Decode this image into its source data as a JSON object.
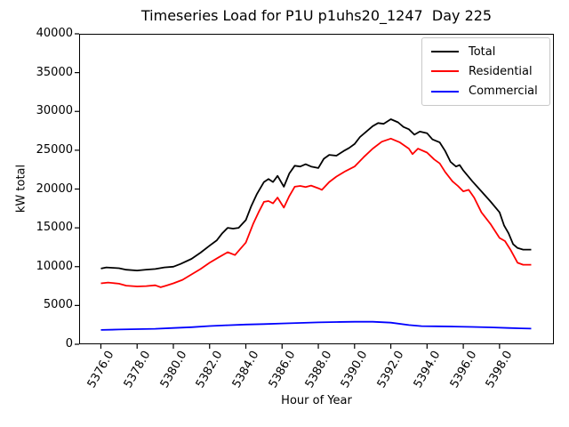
{
  "chart_data": {
    "type": "line",
    "title": "Timeseries Load for P1U p1uhs20_1247  Day 225",
    "xlabel": "Hour of Year",
    "ylabel": "kW total",
    "xlim": [
      5374.8,
      5401.0
    ],
    "ylim": [
      0,
      40000
    ],
    "grid": false,
    "legend_position": "upper right",
    "x_ticks": [
      5376,
      5378,
      5380,
      5382,
      5384,
      5386,
      5388,
      5390,
      5392,
      5394,
      5396,
      5398
    ],
    "x_tick_labels": [
      "5376.0",
      "5378.0",
      "5380.0",
      "5382.0",
      "5384.0",
      "5386.0",
      "5388.0",
      "5390.0",
      "5392.0",
      "5394.0",
      "5396.0",
      "5398.0"
    ],
    "y_ticks": [
      0,
      5000,
      10000,
      15000,
      20000,
      25000,
      30000,
      35000,
      40000
    ],
    "y_tick_labels": [
      "0",
      "5000",
      "10000",
      "15000",
      "20000",
      "25000",
      "30000",
      "35000",
      "40000"
    ],
    "series": [
      {
        "name": "Total",
        "color": "#000000",
        "points": [
          [
            5376.0,
            9750
          ],
          [
            5376.3,
            9900
          ],
          [
            5376.7,
            9850
          ],
          [
            5377.0,
            9800
          ],
          [
            5377.4,
            9600
          ],
          [
            5378.0,
            9500
          ],
          [
            5378.5,
            9620
          ],
          [
            5379.0,
            9700
          ],
          [
            5379.5,
            9900
          ],
          [
            5380.0,
            10000
          ],
          [
            5380.4,
            10350
          ],
          [
            5381.0,
            11000
          ],
          [
            5381.5,
            11800
          ],
          [
            5382.0,
            12700
          ],
          [
            5382.4,
            13400
          ],
          [
            5382.7,
            14300
          ],
          [
            5383.0,
            15000
          ],
          [
            5383.3,
            14900
          ],
          [
            5383.6,
            15000
          ],
          [
            5384.0,
            16000
          ],
          [
            5384.3,
            17800
          ],
          [
            5384.6,
            19300
          ],
          [
            5385.0,
            20900
          ],
          [
            5385.25,
            21300
          ],
          [
            5385.5,
            20900
          ],
          [
            5385.75,
            21700
          ],
          [
            5386.1,
            20300
          ],
          [
            5386.4,
            22000
          ],
          [
            5386.7,
            23000
          ],
          [
            5387.0,
            22900
          ],
          [
            5387.3,
            23200
          ],
          [
            5387.6,
            22900
          ],
          [
            5388.0,
            22700
          ],
          [
            5388.3,
            23900
          ],
          [
            5388.6,
            24400
          ],
          [
            5389.0,
            24300
          ],
          [
            5389.4,
            24900
          ],
          [
            5389.7,
            25300
          ],
          [
            5390.0,
            25800
          ],
          [
            5390.3,
            26700
          ],
          [
            5390.6,
            27300
          ],
          [
            5391.0,
            28100
          ],
          [
            5391.3,
            28500
          ],
          [
            5391.6,
            28400
          ],
          [
            5392.0,
            29000
          ],
          [
            5392.4,
            28600
          ],
          [
            5392.7,
            28000
          ],
          [
            5393.0,
            27700
          ],
          [
            5393.3,
            27000
          ],
          [
            5393.6,
            27400
          ],
          [
            5394.0,
            27200
          ],
          [
            5394.3,
            26400
          ],
          [
            5394.7,
            26000
          ],
          [
            5395.0,
            24900
          ],
          [
            5395.3,
            23500
          ],
          [
            5395.6,
            22900
          ],
          [
            5395.8,
            23100
          ],
          [
            5396.0,
            22400
          ],
          [
            5396.5,
            21000
          ],
          [
            5397.0,
            19700
          ],
          [
            5397.5,
            18400
          ],
          [
            5398.0,
            17000
          ],
          [
            5398.25,
            15300
          ],
          [
            5398.5,
            14300
          ],
          [
            5398.75,
            12900
          ],
          [
            5399.0,
            12400
          ],
          [
            5399.3,
            12200
          ],
          [
            5399.75,
            12200
          ]
        ]
      },
      {
        "name": "Residential",
        "color": "#ff0000",
        "points": [
          [
            5376.0,
            7850
          ],
          [
            5376.4,
            7950
          ],
          [
            5377.0,
            7800
          ],
          [
            5377.4,
            7550
          ],
          [
            5378.0,
            7450
          ],
          [
            5378.5,
            7500
          ],
          [
            5379.0,
            7600
          ],
          [
            5379.3,
            7350
          ],
          [
            5379.6,
            7550
          ],
          [
            5380.0,
            7850
          ],
          [
            5380.5,
            8300
          ],
          [
            5381.0,
            9000
          ],
          [
            5381.5,
            9700
          ],
          [
            5382.0,
            10500
          ],
          [
            5382.5,
            11200
          ],
          [
            5383.0,
            11860
          ],
          [
            5383.4,
            11500
          ],
          [
            5384.0,
            13100
          ],
          [
            5384.4,
            15500
          ],
          [
            5384.7,
            17000
          ],
          [
            5385.0,
            18350
          ],
          [
            5385.25,
            18450
          ],
          [
            5385.5,
            18150
          ],
          [
            5385.75,
            18900
          ],
          [
            5386.1,
            17600
          ],
          [
            5386.4,
            19100
          ],
          [
            5386.7,
            20300
          ],
          [
            5387.0,
            20400
          ],
          [
            5387.3,
            20250
          ],
          [
            5387.6,
            20450
          ],
          [
            5388.0,
            20100
          ],
          [
            5388.2,
            19900
          ],
          [
            5388.6,
            20900
          ],
          [
            5389.0,
            21600
          ],
          [
            5389.5,
            22300
          ],
          [
            5390.0,
            22900
          ],
          [
            5390.5,
            24100
          ],
          [
            5391.0,
            25200
          ],
          [
            5391.5,
            26100
          ],
          [
            5392.0,
            26500
          ],
          [
            5392.5,
            26000
          ],
          [
            5393.0,
            25200
          ],
          [
            5393.2,
            24500
          ],
          [
            5393.5,
            25200
          ],
          [
            5394.0,
            24700
          ],
          [
            5394.4,
            23800
          ],
          [
            5394.7,
            23300
          ],
          [
            5395.0,
            22200
          ],
          [
            5395.4,
            21000
          ],
          [
            5395.7,
            20400
          ],
          [
            5396.0,
            19700
          ],
          [
            5396.3,
            19900
          ],
          [
            5396.6,
            18900
          ],
          [
            5397.0,
            17000
          ],
          [
            5397.5,
            15500
          ],
          [
            5398.0,
            13700
          ],
          [
            5398.3,
            13300
          ],
          [
            5398.6,
            12200
          ],
          [
            5399.0,
            10500
          ],
          [
            5399.3,
            10250
          ],
          [
            5399.75,
            10250
          ]
        ]
      },
      {
        "name": "Commercial",
        "color": "#0000ff",
        "points": [
          [
            5376.0,
            1850
          ],
          [
            5377.0,
            1900
          ],
          [
            5378.0,
            1950
          ],
          [
            5379.0,
            2000
          ],
          [
            5380.0,
            2100
          ],
          [
            5381.0,
            2200
          ],
          [
            5382.0,
            2350
          ],
          [
            5383.0,
            2450
          ],
          [
            5384.0,
            2550
          ],
          [
            5385.0,
            2600
          ],
          [
            5386.0,
            2680
          ],
          [
            5387.0,
            2750
          ],
          [
            5388.0,
            2820
          ],
          [
            5389.0,
            2870
          ],
          [
            5390.0,
            2900
          ],
          [
            5391.0,
            2900
          ],
          [
            5392.0,
            2780
          ],
          [
            5393.0,
            2480
          ],
          [
            5393.7,
            2340
          ],
          [
            5394.5,
            2310
          ],
          [
            5395.5,
            2280
          ],
          [
            5396.5,
            2230
          ],
          [
            5397.5,
            2180
          ],
          [
            5398.5,
            2100
          ],
          [
            5399.2,
            2050
          ],
          [
            5399.75,
            2020
          ]
        ]
      }
    ]
  }
}
